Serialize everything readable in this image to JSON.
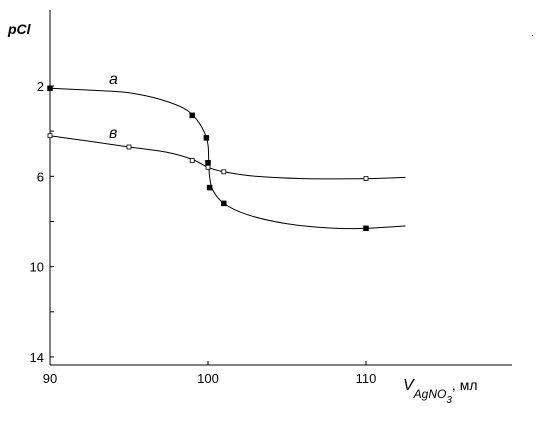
{
  "chart_data": {
    "type": "line",
    "title": "",
    "ylabel": "pCl",
    "xlabel": {
      "main": "V",
      "subscript": "AgNO",
      "subscript_digit": "3",
      "suffix": ", мл"
    },
    "xlim": [
      90,
      112
    ],
    "ylim": [
      1,
      15
    ],
    "y_inverted": true,
    "x_ticks": [
      90,
      100,
      110
    ],
    "y_ticks": [
      2,
      6,
      10,
      14
    ],
    "y_minor_ticks": [
      4,
      8,
      12
    ],
    "grid": false,
    "series": [
      {
        "name": "а",
        "marker": "filled-square",
        "points": [
          [
            90,
            2.1
          ],
          [
            99,
            3.3
          ],
          [
            99.9,
            4.3
          ],
          [
            100,
            5.4
          ],
          [
            100.1,
            6.5
          ],
          [
            101,
            7.2
          ],
          [
            110,
            8.3
          ]
        ],
        "curve": [
          [
            90,
            2.1
          ],
          [
            93,
            2.2
          ],
          [
            95,
            2.3
          ],
          [
            97,
            2.6
          ],
          [
            98.5,
            3.0
          ],
          [
            99.3,
            3.5
          ],
          [
            99.8,
            4.1
          ],
          [
            100,
            4.6
          ],
          [
            100.05,
            5.4
          ],
          [
            100.1,
            6.0
          ],
          [
            100.3,
            6.6
          ],
          [
            101,
            7.2
          ],
          [
            102.5,
            7.7
          ],
          [
            105,
            8.1
          ],
          [
            108,
            8.3
          ],
          [
            110,
            8.3
          ],
          [
            112.5,
            8.2
          ]
        ]
      },
      {
        "name": "в",
        "marker": "open-square",
        "points": [
          [
            90,
            4.2
          ],
          [
            95,
            4.7
          ],
          [
            99,
            5.3
          ],
          [
            100,
            5.6
          ],
          [
            101,
            5.8
          ],
          [
            110,
            6.1
          ]
        ],
        "curve": [
          [
            90,
            4.2
          ],
          [
            92.5,
            4.45
          ],
          [
            95,
            4.7
          ],
          [
            97.5,
            4.95
          ],
          [
            99,
            5.25
          ],
          [
            100,
            5.6
          ],
          [
            101,
            5.8
          ],
          [
            103,
            6.0
          ],
          [
            106,
            6.1
          ],
          [
            110,
            6.1
          ],
          [
            112.5,
            6.05
          ]
        ]
      }
    ]
  },
  "stray_mark": "."
}
